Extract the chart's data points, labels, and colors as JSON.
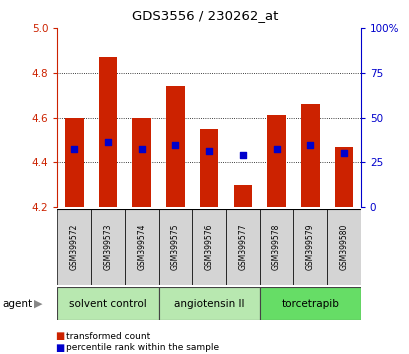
{
  "title": "GDS3556 / 230262_at",
  "samples": [
    "GSM399572",
    "GSM399573",
    "GSM399574",
    "GSM399575",
    "GSM399576",
    "GSM399577",
    "GSM399578",
    "GSM399579",
    "GSM399580"
  ],
  "bar_tops": [
    4.6,
    4.87,
    4.6,
    4.74,
    4.55,
    4.3,
    4.61,
    4.66,
    4.47
  ],
  "bar_bottom": 4.2,
  "blue_y": [
    4.46,
    4.49,
    4.46,
    4.48,
    4.45,
    4.435,
    4.46,
    4.48,
    4.44
  ],
  "ylim": [
    4.2,
    5.0
  ],
  "yticks_left": [
    4.2,
    4.4,
    4.6,
    4.8,
    5.0
  ],
  "yticks_right_vals": [
    "0",
    "25",
    "50",
    "75",
    "100%"
  ],
  "yticks_right_pos": [
    4.2,
    4.4,
    4.6,
    4.8,
    5.0
  ],
  "bar_color": "#cc2200",
  "blue_color": "#0000cc",
  "left_tick_color": "#cc2200",
  "right_tick_color": "#0000cc",
  "agent_groups": [
    {
      "label": "solvent control",
      "color": "#b8e8b0",
      "start": 0,
      "end": 3
    },
    {
      "label": "angiotensin II",
      "color": "#b8e8b0",
      "start": 3,
      "end": 6
    },
    {
      "label": "torcetrapib",
      "color": "#66dd66",
      "start": 6,
      "end": 9
    }
  ],
  "legend_items": [
    {
      "label": "transformed count",
      "color": "#cc2200"
    },
    {
      "label": "percentile rank within the sample",
      "color": "#0000cc"
    }
  ],
  "bar_width": 0.55
}
